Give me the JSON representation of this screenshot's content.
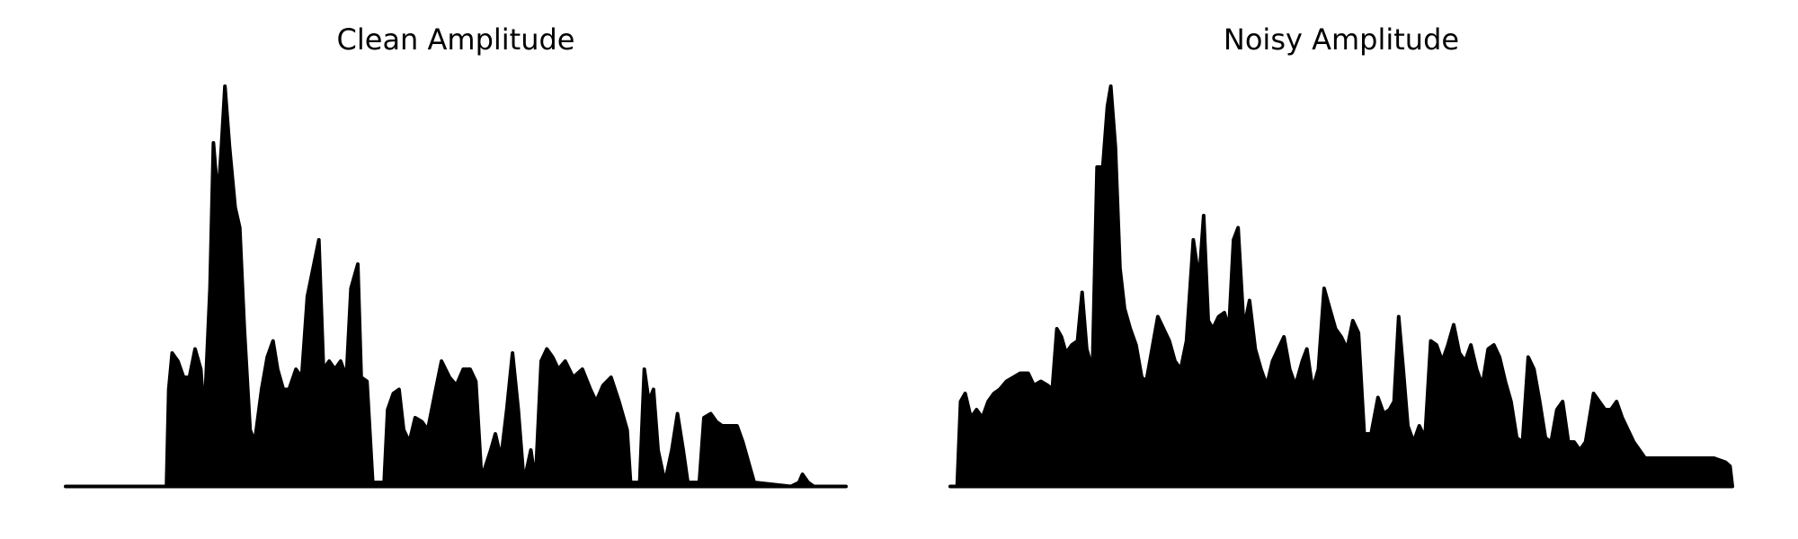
{
  "chart_data": [
    {
      "type": "area",
      "title": "Clean Amplitude",
      "color": "#000000",
      "xlim": [
        0,
        681
      ],
      "ylim": [
        0,
        1
      ],
      "x": [
        0,
        88,
        90,
        93,
        98,
        103,
        108,
        113,
        118,
        121,
        126,
        129,
        133,
        136,
        139,
        143,
        148,
        152,
        156,
        161,
        165,
        171,
        176,
        181,
        185,
        190,
        195,
        201,
        206,
        211,
        216,
        221,
        225,
        230,
        235,
        240,
        245,
        249,
        255,
        258,
        263,
        268,
        278,
        281,
        286,
        291,
        295,
        300,
        305,
        311,
        316,
        323,
        328,
        335,
        341,
        347,
        353,
        358,
        363,
        371,
        375,
        380,
        385,
        390,
        395,
        400,
        406,
        410,
        415,
        420,
        425,
        430,
        436,
        443,
        451,
        458,
        463,
        469,
        476,
        483,
        490,
        493,
        501,
        505,
        509,
        513,
        517,
        523,
        529,
        534,
        539,
        543,
        553,
        557,
        563,
        568,
        573,
        580,
        586,
        591,
        597,
        601,
        633,
        640,
        643,
        648,
        653,
        681
      ],
      "values": [
        0.01,
        0.01,
        0.25,
        0.34,
        0.32,
        0.28,
        0.28,
        0.35,
        0.3,
        0.18,
        0.5,
        0.86,
        0.72,
        0.85,
        1.0,
        0.85,
        0.7,
        0.65,
        0.4,
        0.15,
        0.12,
        0.25,
        0.33,
        0.37,
        0.3,
        0.25,
        0.25,
        0.3,
        0.28,
        0.48,
        0.55,
        0.62,
        0.3,
        0.32,
        0.3,
        0.32,
        0.28,
        0.5,
        0.56,
        0.28,
        0.27,
        0.02,
        0.02,
        0.2,
        0.24,
        0.25,
        0.15,
        0.12,
        0.18,
        0.17,
        0.15,
        0.25,
        0.32,
        0.28,
        0.26,
        0.3,
        0.3,
        0.27,
        0.03,
        0.1,
        0.14,
        0.08,
        0.2,
        0.34,
        0.2,
        0.02,
        0.1,
        0.02,
        0.32,
        0.35,
        0.33,
        0.3,
        0.32,
        0.28,
        0.3,
        0.25,
        0.22,
        0.26,
        0.28,
        0.22,
        0.15,
        0.02,
        0.02,
        0.3,
        0.22,
        0.25,
        0.1,
        0.02,
        0.1,
        0.19,
        0.1,
        0.02,
        0.02,
        0.18,
        0.19,
        0.17,
        0.16,
        0.16,
        0.16,
        0.12,
        0.06,
        0.02,
        0.01,
        0.02,
        0.04,
        0.02,
        0.01,
        0.01
      ]
    },
    {
      "type": "area",
      "title": "Noisy Amplitude",
      "color": "#000000",
      "xlim": [
        0,
        682
      ],
      "ylim": [
        0,
        1
      ],
      "x": [
        0,
        6,
        9,
        13,
        18,
        23,
        28,
        33,
        38,
        43,
        49,
        55,
        61,
        68,
        73,
        79,
        85,
        89,
        93,
        97,
        101,
        106,
        111,
        115,
        119,
        124,
        128,
        133,
        137,
        140,
        144,
        148,
        152,
        157,
        162,
        167,
        171,
        176,
        181,
        186,
        191,
        196,
        201,
        206,
        212,
        217,
        221,
        225,
        229,
        234,
        239,
        243,
        247,
        251,
        256,
        261,
        266,
        271,
        276,
        281,
        286,
        291,
        296,
        301,
        307,
        311,
        316,
        321,
        326,
        331,
        336,
        341,
        346,
        351,
        356,
        361,
        367,
        373,
        378,
        383,
        387,
        391,
        395,
        399,
        404,
        409,
        414,
        419,
        424,
        429,
        434,
        439,
        444,
        449,
        454,
        459,
        464,
        469,
        474,
        479,
        484,
        489,
        494,
        499,
        504,
        509,
        514,
        519,
        524,
        529,
        534,
        539,
        544,
        549,
        554,
        561,
        566,
        571,
        576,
        581,
        586,
        591,
        596,
        601,
        606,
        616,
        626,
        636,
        646,
        656,
        666,
        676,
        680,
        682
      ],
      "values": [
        0.01,
        0.01,
        0.22,
        0.24,
        0.18,
        0.2,
        0.18,
        0.22,
        0.24,
        0.25,
        0.27,
        0.28,
        0.29,
        0.29,
        0.26,
        0.27,
        0.26,
        0.25,
        0.4,
        0.38,
        0.34,
        0.36,
        0.37,
        0.49,
        0.35,
        0.3,
        0.8,
        0.8,
        0.95,
        1.0,
        0.85,
        0.55,
        0.45,
        0.4,
        0.36,
        0.28,
        0.27,
        0.35,
        0.43,
        0.4,
        0.37,
        0.32,
        0.3,
        0.37,
        0.62,
        0.52,
        0.68,
        0.42,
        0.4,
        0.43,
        0.44,
        0.4,
        0.62,
        0.65,
        0.4,
        0.47,
        0.35,
        0.3,
        0.26,
        0.32,
        0.35,
        0.38,
        0.3,
        0.26,
        0.32,
        0.35,
        0.25,
        0.3,
        0.5,
        0.45,
        0.4,
        0.38,
        0.35,
        0.42,
        0.39,
        0.14,
        0.14,
        0.23,
        0.19,
        0.2,
        0.22,
        0.43,
        0.3,
        0.16,
        0.12,
        0.16,
        0.13,
        0.37,
        0.36,
        0.32,
        0.36,
        0.41,
        0.34,
        0.32,
        0.36,
        0.3,
        0.26,
        0.35,
        0.36,
        0.33,
        0.27,
        0.22,
        0.13,
        0.12,
        0.33,
        0.3,
        0.22,
        0.13,
        0.12,
        0.2,
        0.22,
        0.12,
        0.12,
        0.1,
        0.12,
        0.24,
        0.22,
        0.2,
        0.2,
        0.22,
        0.18,
        0.15,
        0.12,
        0.1,
        0.08,
        0.08,
        0.08,
        0.08,
        0.08,
        0.08,
        0.08,
        0.07,
        0.06,
        0.01
      ]
    }
  ]
}
